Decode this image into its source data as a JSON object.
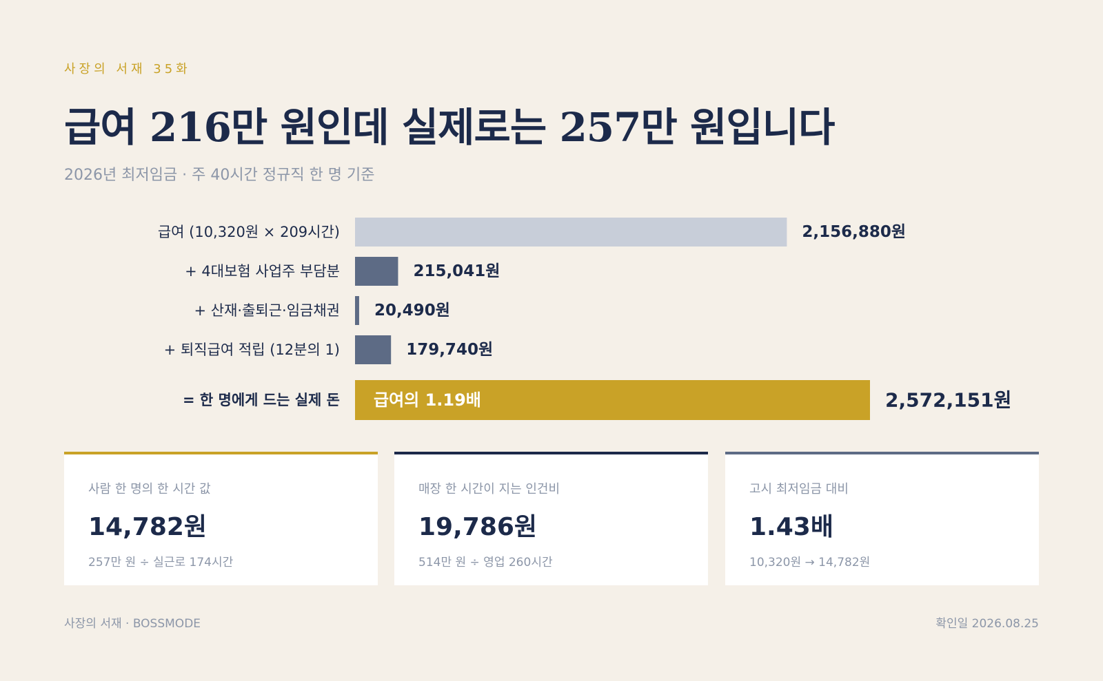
{
  "header": {
    "eyebrow": "사장의 서재 35화",
    "title": "급여 216만 원인데 실제로는 257만 원입니다",
    "subtitle": "2026년 최저임금 · 주 40시간 정규직 한 명 기준"
  },
  "chart_data": {
    "type": "bar",
    "orientation": "horizontal",
    "categories": [
      "급여 (10,320원 × 209시간)",
      "+ 4대보험 사업주 부담분",
      "+ 산재·출퇴근·임금채권",
      "+ 퇴직급여 적립 (12분의 1)",
      "= 한 명에게 드는 실제 돈"
    ],
    "values": [
      2156880,
      215041,
      20490,
      179740,
      2572151
    ],
    "value_labels": [
      "2,156,880원",
      "215,041원",
      "20,490원",
      "179,740원",
      "2,572,151원"
    ],
    "total_inner_label": "급여의 1.19배",
    "colors": [
      "#c8ced9",
      "#5d6b85",
      "#5d6b85",
      "#5d6b85",
      "#c9a227"
    ]
  },
  "cards": [
    {
      "label": "사람 한 명의 한 시간 값",
      "value": "14,782원",
      "note": "257만 원 ÷ 실근로 174시간",
      "accent": "#c9a227"
    },
    {
      "label": "매장 한 시간이 지는 인건비",
      "value": "19,786원",
      "note": "514만 원 ÷ 영업 260시간",
      "accent": "#1c2a4a"
    },
    {
      "label": "고시 최저임금 대비",
      "value": "1.43배",
      "note": "10,320원 → 14,782원",
      "accent": "#5d6b85"
    }
  ],
  "footer": {
    "left": "사장의 서재 · BOSSMODE",
    "right": "확인일 2026.08.25"
  }
}
